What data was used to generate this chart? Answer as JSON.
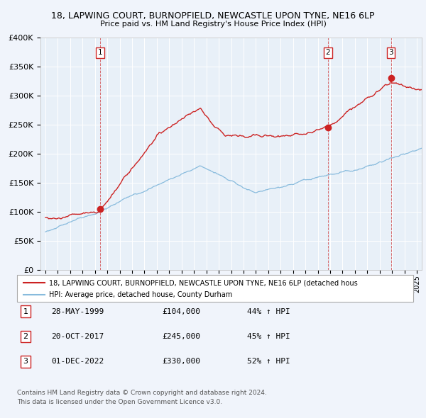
{
  "title1": "18, LAPWING COURT, BURNOPFIELD, NEWCASTLE UPON TYNE, NE16 6LP",
  "title2": "Price paid vs. HM Land Registry's House Price Index (HPI)",
  "bg_color": "#f0f4fb",
  "plot_bg": "#e8f0f8",
  "red_color": "#cc2222",
  "blue_color": "#88bbdd",
  "sale1_date": 1999.41,
  "sale1_price": 104000,
  "sale2_date": 2017.8,
  "sale2_price": 245000,
  "sale3_date": 2022.92,
  "sale3_price": 330000,
  "legend_line1": "18, LAPWING COURT, BURNOPFIELD, NEWCASTLE UPON TYNE, NE16 6LP (detached hous",
  "legend_line2": "HPI: Average price, detached house, County Durham",
  "table_rows": [
    [
      "1",
      "28-MAY-1999",
      "£104,000",
      "44% ↑ HPI"
    ],
    [
      "2",
      "20-OCT-2017",
      "£245,000",
      "45% ↑ HPI"
    ],
    [
      "3",
      "01-DEC-2022",
      "£330,000",
      "52% ↑ HPI"
    ]
  ],
  "footer1": "Contains HM Land Registry data © Crown copyright and database right 2024.",
  "footer2": "This data is licensed under the Open Government Licence v3.0.",
  "ylim": [
    0,
    400000
  ],
  "yticks": [
    0,
    50000,
    100000,
    150000,
    200000,
    250000,
    300000,
    350000,
    400000
  ],
  "xlim_start": 1994.6,
  "xlim_end": 2025.4
}
